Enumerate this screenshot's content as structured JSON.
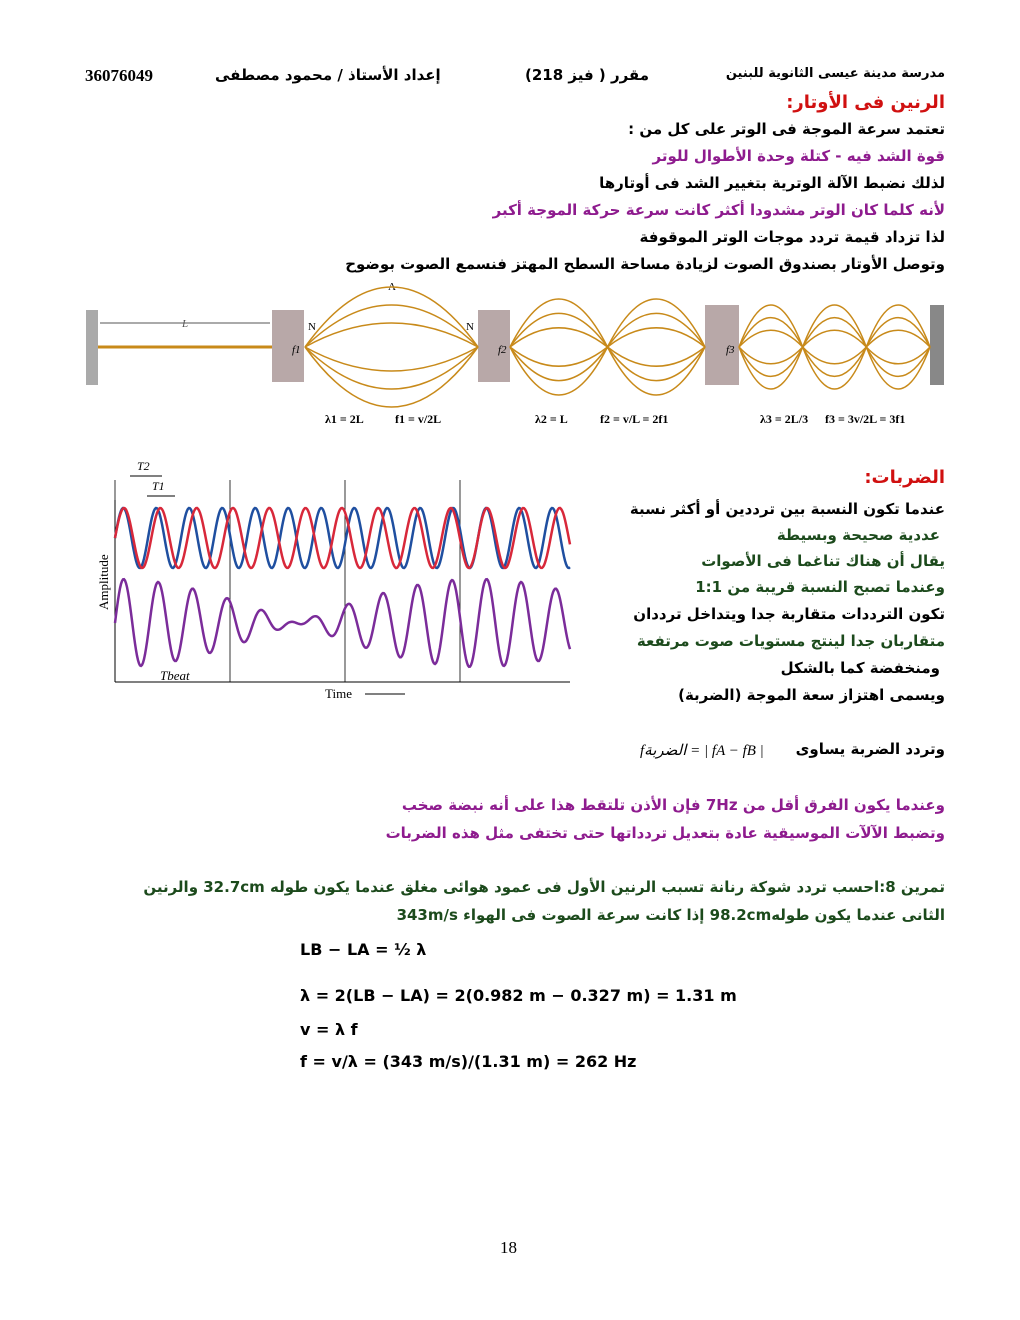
{
  "header": {
    "school": "مدرسة مدينة عيسى الثانوية للبنين",
    "course": "مقرر ( فيز 218)",
    "author": "إعداد الأستاذ / محمود مصطفى",
    "code": "36076049"
  },
  "strings": {
    "title": "الرنين فى الأوتار:",
    "lines": [
      "تعتمد سرعة الموجة فى الوتر على كل من :",
      "قوة الشد فيه          -          كتلة وحدة الأطوال للوتر",
      "لذلك نضبط الآلة الوترية بتغيير الشد فى أوتارها",
      "لأنه كلما كان الوتر مشدودا أكثر كانت سرعة حركة الموجة أكبر",
      "لذا تزداد قيمة تردد موجات الوتر الموقوفة",
      "وتوصل الأوتار بصندوق الصوت لزيادة مساحة السطح المهتز فنسمع الصوت بوضوح"
    ],
    "figure": {
      "length": "L",
      "node1": "N",
      "node2": "N",
      "antinode": "A",
      "f1": "f1",
      "f2": "f2",
      "f3": "f3",
      "lambda1": "λ1 = 2L",
      "freq1": "f1 = v/2L",
      "lambda2": "λ2 = L",
      "freq2": "f2 = v/L = 2f1",
      "lambda3": "λ3 = 2L/3",
      "freq3": "f3 = 3v/2L = 3f1"
    }
  },
  "beats": {
    "title": "الضربات:",
    "lines": [
      "عندما تكون النسبة بين ترددين أو أكثر نسبة",
      "عددية صحيحة وبسيطة",
      "يقال أن هناك تناغما فى الأصوات",
      "وعندما تصبح النسبة قريبة من 1:1",
      "تكون الترددات متقاربة جدا ويتداخل ترددان",
      "متقاربان جدا لينتج مستويات صوت مرتفعة",
      "ومنخفضة كما بالشكل",
      "ويسمى اهتزاز سعة الموجة  (الضربة)"
    ],
    "figure": {
      "t2": "T2",
      "t1": "T1",
      "amplitude": "Amplitude",
      "time": "Time",
      "tbeat": "Tbeat"
    },
    "formula_text": "وتردد الضربة يساوى",
    "formula": "fالضربة = | fA − fB |",
    "notes": [
      "وعندما يكون الفرق أقل من  7Hz  فإن الأذن تلتقط هذا على أنه نبضة صخب",
      "وتضبط الآلآت الموسيقية عادة بتعديل تردداتها حتى تختفى مثل هذه الضربات"
    ]
  },
  "exercise": {
    "lines": [
      "تمرين 8:احسب تردد شوكة رنانة تسبب الرنين الأول فى عمود هوائى مغلق عندما يكون طوله 32.7cm والرنين",
      "الثانى عندما يكون طوله98.2cm إذا كانت سرعة الصوت فى الهواء 343m/s"
    ],
    "solution": [
      "LB − LA = ½ λ",
      "λ = 2(LB − LA) = 2(0.982 m − 0.327 m) = 1.31 m",
      "v = λ f",
      "f = v/λ = (343 m/s)/(1.31 m) = 262 Hz"
    ]
  },
  "page_number": "18"
}
